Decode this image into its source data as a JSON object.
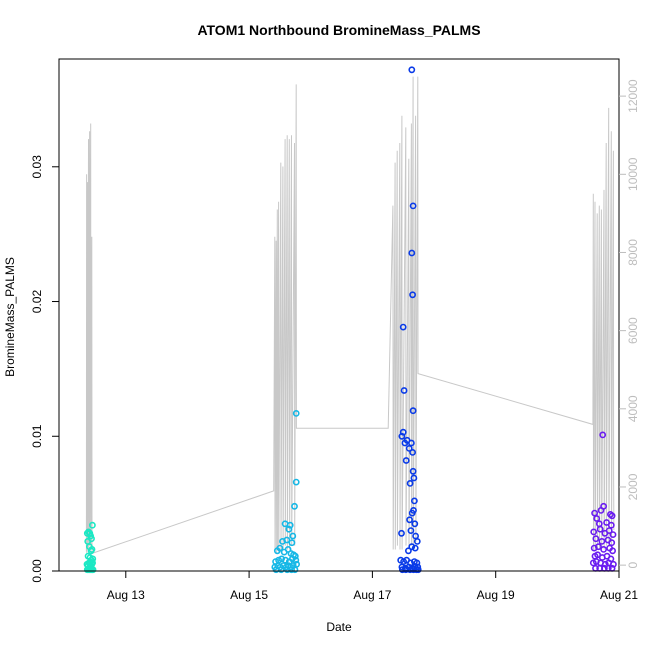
{
  "chart_data": {
    "type": "scatter",
    "title": "ATOM1 Northbound BromineMass_PALMS",
    "xlabel": "Date",
    "ylabel": "BromineMass_PALMS",
    "x_axis": {
      "type": "date",
      "start": "2016-08-11T22:00",
      "end": "2016-08-21T00:00",
      "ticks": [
        "Aug 13",
        "Aug 15",
        "Aug 17",
        "Aug 19",
        "Aug 21"
      ]
    },
    "y_left": {
      "range": [
        0,
        0.038
      ],
      "ticks": [
        "0.00",
        "0.01",
        "0.02",
        "0.03"
      ],
      "tick_values": [
        0,
        0.01,
        0.02,
        0.03
      ]
    },
    "y_right": {
      "range": [
        -150,
        12950
      ],
      "ticks": [
        "0",
        "2000",
        "4000",
        "6000",
        "8000",
        "10000",
        "12000"
      ],
      "tick_values": [
        0,
        2000,
        4000,
        6000,
        8000,
        10000,
        12000
      ],
      "color": "#bdbdbd"
    },
    "grid": false,
    "altitude_color": "#c8c8c8",
    "altitude_series": [
      [
        "2016-08-12T08:40",
        350
      ],
      [
        "2016-08-12T08:45",
        10000
      ],
      [
        "2016-08-12T08:50",
        300
      ],
      [
        "2016-08-12T09:05",
        9800
      ],
      [
        "2016-08-12T09:10",
        400
      ],
      [
        "2016-08-12T09:30",
        10900
      ],
      [
        "2016-08-12T09:35",
        300
      ],
      [
        "2016-08-12T09:55",
        11100
      ],
      [
        "2016-08-12T10:00",
        500
      ],
      [
        "2016-08-12T10:20",
        11300
      ],
      [
        "2016-08-12T10:25",
        400
      ],
      [
        "2016-08-12T10:45",
        8400
      ],
      [
        "2016-08-12T10:50",
        300
      ],
      [
        "2016-08-15T09:35",
        1900
      ],
      [
        "2016-08-15T10:00",
        8400
      ],
      [
        "2016-08-15T10:05",
        400
      ],
      [
        "2016-08-15T10:30",
        8300
      ],
      [
        "2016-08-15T10:35",
        300
      ],
      [
        "2016-08-15T11:00",
        9100
      ],
      [
        "2016-08-15T11:05",
        400
      ],
      [
        "2016-08-15T11:30",
        9300
      ],
      [
        "2016-08-15T11:35",
        300
      ],
      [
        "2016-08-15T12:20",
        10300
      ],
      [
        "2016-08-15T12:25",
        400
      ],
      [
        "2016-08-15T13:10",
        10200
      ],
      [
        "2016-08-15T13:15",
        400
      ],
      [
        "2016-08-15T14:00",
        10900
      ],
      [
        "2016-08-15T14:05",
        500
      ],
      [
        "2016-08-15T14:50",
        11000
      ],
      [
        "2016-08-15T14:55",
        400
      ],
      [
        "2016-08-15T15:40",
        10900
      ],
      [
        "2016-08-15T15:45",
        400
      ],
      [
        "2016-08-15T16:30",
        11000
      ],
      [
        "2016-08-15T16:35",
        500
      ],
      [
        "2016-08-15T17:40",
        10800
      ],
      [
        "2016-08-15T17:45",
        500
      ],
      [
        "2016-08-15T18:20",
        12300
      ],
      [
        "2016-08-15T18:25",
        3500
      ],
      [
        "2016-08-17T06:10",
        3500
      ],
      [
        "2016-08-17T08:00",
        9200
      ],
      [
        "2016-08-17T08:05",
        400
      ],
      [
        "2016-08-17T08:50",
        10300
      ],
      [
        "2016-08-17T08:55",
        400
      ],
      [
        "2016-08-17T09:40",
        10600
      ],
      [
        "2016-08-17T09:45",
        500
      ],
      [
        "2016-08-17T10:40",
        10800
      ],
      [
        "2016-08-17T10:45",
        400
      ],
      [
        "2016-08-17T11:30",
        11500
      ],
      [
        "2016-08-17T11:35",
        400
      ],
      [
        "2016-08-17T13:00",
        11200
      ],
      [
        "2016-08-17T13:05",
        500
      ],
      [
        "2016-08-17T14:10",
        10400
      ],
      [
        "2016-08-17T14:15",
        400
      ],
      [
        "2016-08-17T15:10",
        11300
      ],
      [
        "2016-08-17T15:15",
        500
      ],
      [
        "2016-08-17T15:50",
        12500
      ],
      [
        "2016-08-17T15:55",
        500
      ],
      [
        "2016-08-17T16:50",
        11500
      ],
      [
        "2016-08-17T16:55",
        600
      ],
      [
        "2016-08-17T17:40",
        12500
      ],
      [
        "2016-08-17T17:45",
        4900
      ],
      [
        "2016-08-20T13:50",
        3600
      ],
      [
        "2016-08-20T14:00",
        9500
      ],
      [
        "2016-08-20T14:05",
        400
      ],
      [
        "2016-08-20T14:40",
        9300
      ],
      [
        "2016-08-20T14:45",
        400
      ],
      [
        "2016-08-20T15:30",
        9000
      ],
      [
        "2016-08-20T15:35",
        400
      ],
      [
        "2016-08-20T16:20",
        9200
      ],
      [
        "2016-08-20T16:25",
        400
      ],
      [
        "2016-08-20T17:10",
        9100
      ],
      [
        "2016-08-20T17:15",
        400
      ],
      [
        "2016-08-20T18:10",
        9600
      ],
      [
        "2016-08-20T18:15",
        400
      ],
      [
        "2016-08-20T19:00",
        10800
      ],
      [
        "2016-08-20T19:05",
        500
      ],
      [
        "2016-08-20T20:00",
        11700
      ],
      [
        "2016-08-20T20:05",
        500
      ],
      [
        "2016-08-20T21:00",
        11100
      ],
      [
        "2016-08-20T21:05",
        500
      ],
      [
        "2016-08-20T21:50",
        10600
      ],
      [
        "2016-08-20T21:55",
        2300
      ],
      [
        "2016-08-20T22:00",
        900
      ]
    ],
    "flights": [
      {
        "color": "#1ce8c4",
        "points": [
          [
            "2016-08-12T09:00",
            0.0028
          ],
          [
            "2016-08-12T09:30",
            0.0029
          ],
          [
            "2016-08-12T10:00",
            0.0028
          ],
          [
            "2016-08-12T10:20",
            0.0026
          ],
          [
            "2016-08-12T10:40",
            0.0024
          ],
          [
            "2016-08-12T11:00",
            0.0034
          ],
          [
            "2016-08-12T09:10",
            0.0022
          ],
          [
            "2016-08-12T09:50",
            0.0018
          ],
          [
            "2016-08-12T10:30",
            0.0015
          ],
          [
            "2016-08-12T10:50",
            0.0016
          ],
          [
            "2016-08-12T09:20",
            0.0011
          ],
          [
            "2016-08-12T10:05",
            0.001
          ],
          [
            "2016-08-12T10:35",
            0.0008
          ],
          [
            "2016-08-12T11:10",
            0.0009
          ],
          [
            "2016-08-12T08:55",
            0.0005
          ],
          [
            "2016-08-12T09:15",
            0.0004
          ],
          [
            "2016-08-12T09:40",
            0.0006
          ],
          [
            "2016-08-12T10:00",
            0.0005
          ],
          [
            "2016-08-12T10:25",
            0.0004
          ],
          [
            "2016-08-12T10:45",
            0.0005
          ],
          [
            "2016-08-12T11:05",
            0.0006
          ],
          [
            "2016-08-12T09:00",
            0.0001
          ],
          [
            "2016-08-12T09:25",
            0.0001
          ],
          [
            "2016-08-12T09:55",
            0.0001
          ],
          [
            "2016-08-12T10:15",
            0.0001
          ],
          [
            "2016-08-12T10:40",
            0.0001
          ],
          [
            "2016-08-12T11:00",
            0.0001
          ],
          [
            "2016-08-12T11:15",
            0.0001
          ]
        ]
      },
      {
        "color": "#17b8e6",
        "points": [
          [
            "2016-08-15T18:20",
            0.0117
          ],
          [
            "2016-08-15T18:20",
            0.0066
          ],
          [
            "2016-08-15T17:40",
            0.0048
          ],
          [
            "2016-08-15T16:00",
            0.0034
          ],
          [
            "2016-08-15T14:00",
            0.0035
          ],
          [
            "2016-08-15T15:30",
            0.0031
          ],
          [
            "2016-08-15T17:00",
            0.0026
          ],
          [
            "2016-08-15T13:00",
            0.0022
          ],
          [
            "2016-08-15T14:40",
            0.0023
          ],
          [
            "2016-08-15T16:40",
            0.0021
          ],
          [
            "2016-08-15T11:00",
            0.0015
          ],
          [
            "2016-08-15T12:00",
            0.0017
          ],
          [
            "2016-08-15T13:40",
            0.0014
          ],
          [
            "2016-08-15T15:10",
            0.0016
          ],
          [
            "2016-08-15T16:20",
            0.0013
          ],
          [
            "2016-08-15T17:20",
            0.0012
          ],
          [
            "2016-08-15T18:00",
            0.0011
          ],
          [
            "2016-08-15T10:20",
            0.0007
          ],
          [
            "2016-08-15T11:30",
            0.0008
          ],
          [
            "2016-08-15T12:40",
            0.0009
          ],
          [
            "2016-08-15T14:10",
            0.0008
          ],
          [
            "2016-08-15T15:40",
            0.0007
          ],
          [
            "2016-08-15T16:50",
            0.0009
          ],
          [
            "2016-08-15T18:10",
            0.0008
          ],
          [
            "2016-08-15T10:00",
            0.0003
          ],
          [
            "2016-08-15T11:10",
            0.0004
          ],
          [
            "2016-08-15T12:10",
            0.0003
          ],
          [
            "2016-08-15T13:20",
            0.0004
          ],
          [
            "2016-08-15T14:30",
            0.0003
          ],
          [
            "2016-08-15T15:20",
            0.0004
          ],
          [
            "2016-08-15T16:10",
            0.0003
          ],
          [
            "2016-08-15T17:10",
            0.0004
          ],
          [
            "2016-08-15T18:30",
            0.0005
          ],
          [
            "2016-08-15T10:30",
            0.0001
          ],
          [
            "2016-08-15T12:30",
            0.0001
          ],
          [
            "2016-08-15T14:50",
            0.0001
          ],
          [
            "2016-08-15T16:30",
            0.0001
          ],
          [
            "2016-08-15T17:50",
            0.0001
          ]
        ]
      },
      {
        "color": "#0a3be8",
        "points": [
          [
            "2016-08-17T15:20",
            0.0372
          ],
          [
            "2016-08-17T15:50",
            0.0271
          ],
          [
            "2016-08-17T15:20",
            0.0236
          ],
          [
            "2016-08-17T15:40",
            0.0205
          ],
          [
            "2016-08-17T12:00",
            0.0181
          ],
          [
            "2016-08-17T12:20",
            0.0134
          ],
          [
            "2016-08-17T15:50",
            0.0119
          ],
          [
            "2016-08-17T12:00",
            0.0103
          ],
          [
            "2016-08-17T11:30",
            0.01
          ],
          [
            "2016-08-17T12:40",
            0.0095
          ],
          [
            "2016-08-17T13:30",
            0.0097
          ],
          [
            "2016-08-17T14:20",
            0.0091
          ],
          [
            "2016-08-17T15:10",
            0.0095
          ],
          [
            "2016-08-17T15:40",
            0.0088
          ],
          [
            "2016-08-17T13:10",
            0.0082
          ],
          [
            "2016-08-17T15:50",
            0.0074
          ],
          [
            "2016-08-17T14:40",
            0.0065
          ],
          [
            "2016-08-17T16:10",
            0.0069
          ],
          [
            "2016-08-17T16:20",
            0.0052
          ],
          [
            "2016-08-17T15:30",
            0.0043
          ],
          [
            "2016-08-17T16:00",
            0.0045
          ],
          [
            "2016-08-17T14:30",
            0.0038
          ],
          [
            "2016-08-17T16:30",
            0.0035
          ],
          [
            "2016-08-17T11:20",
            0.0028
          ],
          [
            "2016-08-17T15:00",
            0.003
          ],
          [
            "2016-08-17T16:50",
            0.0026
          ],
          [
            "2016-08-17T17:30",
            0.0022
          ],
          [
            "2016-08-17T14:00",
            0.0015
          ],
          [
            "2016-08-17T15:20",
            0.0018
          ],
          [
            "2016-08-17T16:40",
            0.0017
          ],
          [
            "2016-08-17T11:00",
            0.0008
          ],
          [
            "2016-08-17T12:10",
            0.0007
          ],
          [
            "2016-08-17T13:20",
            0.0008
          ],
          [
            "2016-08-17T14:50",
            0.0006
          ],
          [
            "2016-08-17T16:20",
            0.0007
          ],
          [
            "2016-08-17T17:20",
            0.0006
          ],
          [
            "2016-08-17T11:30",
            0.0003
          ],
          [
            "2016-08-17T12:50",
            0.0002
          ],
          [
            "2016-08-17T14:10",
            0.0003
          ],
          [
            "2016-08-17T15:30",
            0.0002
          ],
          [
            "2016-08-17T16:30",
            0.0003
          ],
          [
            "2016-08-17T17:40",
            0.0003
          ],
          [
            "2016-08-17T11:40",
            0.0001
          ],
          [
            "2016-08-17T13:00",
            0.0001
          ],
          [
            "2016-08-17T14:40",
            0.0001
          ],
          [
            "2016-08-17T16:00",
            0.0001
          ],
          [
            "2016-08-17T17:10",
            0.0001
          ],
          [
            "2016-08-17T17:50",
            0.0001
          ]
        ]
      },
      {
        "color": "#6a1cf0",
        "points": [
          [
            "2016-08-20T17:40",
            0.0101
          ],
          [
            "2016-08-20T18:00",
            0.0048
          ],
          [
            "2016-08-20T17:00",
            0.0045
          ],
          [
            "2016-08-20T14:30",
            0.0043
          ],
          [
            "2016-08-20T15:20",
            0.0039
          ],
          [
            "2016-08-20T20:40",
            0.0042
          ],
          [
            "2016-08-20T21:20",
            0.0041
          ],
          [
            "2016-08-20T16:20",
            0.0035
          ],
          [
            "2016-08-20T19:10",
            0.0036
          ],
          [
            "2016-08-20T21:00",
            0.0034
          ],
          [
            "2016-08-20T14:10",
            0.0029
          ],
          [
            "2016-08-20T16:40",
            0.0031
          ],
          [
            "2016-08-20T18:30",
            0.0028
          ],
          [
            "2016-08-20T20:10",
            0.003
          ],
          [
            "2016-08-20T21:40",
            0.0027
          ],
          [
            "2016-08-20T15:00",
            0.0024
          ],
          [
            "2016-08-20T17:20",
            0.0022
          ],
          [
            "2016-08-20T19:40",
            0.0023
          ],
          [
            "2016-08-20T21:10",
            0.0021
          ],
          [
            "2016-08-20T14:20",
            0.0017
          ],
          [
            "2016-08-20T16:00",
            0.0018
          ],
          [
            "2016-08-20T18:00",
            0.0016
          ],
          [
            "2016-08-20T20:20",
            0.0017
          ],
          [
            "2016-08-20T21:30",
            0.0015
          ],
          [
            "2016-08-20T14:40",
            0.0011
          ],
          [
            "2016-08-20T15:40",
            0.0012
          ],
          [
            "2016-08-20T17:30",
            0.001
          ],
          [
            "2016-08-20T19:20",
            0.0011
          ],
          [
            "2016-08-20T20:50",
            0.0009
          ],
          [
            "2016-08-20T14:00",
            0.0006
          ],
          [
            "2016-08-20T15:10",
            0.0007
          ],
          [
            "2016-08-20T16:50",
            0.0006
          ],
          [
            "2016-08-20T18:40",
            0.0005
          ],
          [
            "2016-08-20T20:00",
            0.0006
          ],
          [
            "2016-08-20T21:50",
            0.0005
          ],
          [
            "2016-08-20T14:50",
            0.0002
          ],
          [
            "2016-08-20T16:30",
            0.0002
          ],
          [
            "2016-08-20T18:20",
            0.0002
          ],
          [
            "2016-08-20T19:50",
            0.0002
          ],
          [
            "2016-08-20T21:20",
            0.0002
          ]
        ]
      }
    ]
  }
}
